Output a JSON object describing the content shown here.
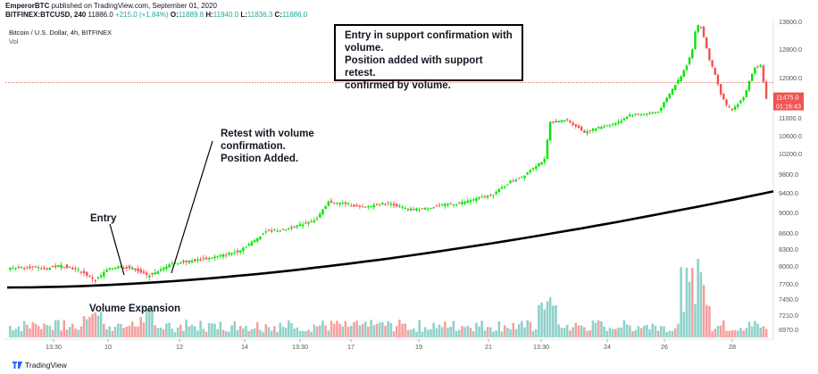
{
  "header": {
    "author": "EmperorBTC",
    "published": "published on TradingView.com, September 01, 2020",
    "symbol": "BITFINEX:BTCUSD, 240",
    "last": "11886.0",
    "change": "+215.0 (+1.84%)",
    "ohlc_o_label": "O:",
    "ohlc_o": "11889.8",
    "ohlc_h_label": "H:",
    "ohlc_h": "11940.0",
    "ohlc_l_label": "L:",
    "ohlc_l": "11836.3",
    "ohlc_c_label": "C:",
    "ohlc_c": "11886.0"
  },
  "legend": {
    "title": "Bitcoin / U.S. Dollar, 4h, BITFINEX",
    "vol": "Vol"
  },
  "annotations": {
    "box_line1": "Entry in support confirmation with",
    "box_line2": "volume.",
    "box_line3": "Position added with support retest.",
    "box_line4": "confirmed by volume.",
    "retest_line1": "Retest with volume",
    "retest_line2": "confirmation.",
    "retest_line3": "Position Added.",
    "entry": "Entry",
    "volume": "Volume Expansion"
  },
  "footer": {
    "brand": "TradingView"
  },
  "price_tags": {
    "last": "11475.0",
    "countdown": "01:16:43"
  },
  "colors": {
    "up": "#26a69a",
    "up_bright": "#00e600",
    "down": "#ef5350",
    "vol_up": "#8fd1c9",
    "vol_down": "#f4a09e",
    "ma": "#000000"
  },
  "chart_data": {
    "type": "candlestick",
    "price_axis": {
      "labels": [
        "13600.0",
        "12800.0",
        "12000.0",
        "11000.0",
        "10600.0",
        "10200.0",
        "9800.0",
        "9400.0",
        "9000.0",
        "8600.0",
        "8300.0",
        "8000.0",
        "7700.0",
        "7450.0",
        "7210.0",
        "6970.0"
      ],
      "values": [
        13600,
        12800,
        12000,
        11000,
        10600,
        10200,
        9800,
        9400,
        9000,
        8600,
        8300,
        8000,
        7700,
        7450,
        7210,
        6970
      ]
    },
    "time_axis": [
      "13:30",
      "10",
      "12",
      "14",
      "13:30",
      "17",
      "19",
      "21",
      "13:30",
      "24",
      "26",
      "28"
    ],
    "ohlc_anchors": [
      [
        0,
        7960
      ],
      [
        6,
        7990
      ],
      [
        12,
        7950
      ],
      [
        18,
        8010
      ],
      [
        24,
        7930
      ],
      [
        28,
        7820
      ],
      [
        30,
        7760
      ],
      [
        32,
        7840
      ],
      [
        34,
        7930
      ],
      [
        38,
        8000
      ],
      [
        44,
        7950
      ],
      [
        48,
        7840
      ],
      [
        52,
        7900
      ],
      [
        56,
        8040
      ],
      [
        62,
        8080
      ],
      [
        68,
        8120
      ],
      [
        74,
        8180
      ],
      [
        80,
        8260
      ],
      [
        86,
        8460
      ],
      [
        90,
        8640
      ],
      [
        96,
        8660
      ],
      [
        102,
        8760
      ],
      [
        108,
        8880
      ],
      [
        112,
        9210
      ],
      [
        118,
        9180
      ],
      [
        124,
        9090
      ],
      [
        130,
        9180
      ],
      [
        134,
        9180
      ],
      [
        140,
        9060
      ],
      [
        146,
        9080
      ],
      [
        152,
        9150
      ],
      [
        158,
        9190
      ],
      [
        164,
        9280
      ],
      [
        170,
        9370
      ],
      [
        176,
        9640
      ],
      [
        180,
        9740
      ],
      [
        184,
        9930
      ],
      [
        188,
        10080
      ],
      [
        190,
        10900
      ],
      [
        196,
        10950
      ],
      [
        202,
        10680
      ],
      [
        208,
        10800
      ],
      [
        214,
        10900
      ],
      [
        218,
        11080
      ],
      [
        224,
        11100
      ],
      [
        228,
        11150
      ],
      [
        232,
        11600
      ],
      [
        236,
        12050
      ],
      [
        238,
        12350
      ],
      [
        240,
        12800
      ],
      [
        242,
        13800
      ],
      [
        244,
        13150
      ],
      [
        246,
        12500
      ],
      [
        248,
        12100
      ],
      [
        250,
        11600
      ],
      [
        252,
        11300
      ],
      [
        254,
        11200
      ],
      [
        256,
        11350
      ],
      [
        258,
        11500
      ],
      [
        260,
        11900
      ],
      [
        262,
        12300
      ],
      [
        264,
        12350
      ],
      [
        266,
        11470
      ]
    ],
    "volume_profile": "relative; spikes at Entry, retest, and near the Aug 26–27 peak",
    "moving_average": {
      "from": 7640,
      "to": 9430
    },
    "horizontal_line": 11880
  }
}
